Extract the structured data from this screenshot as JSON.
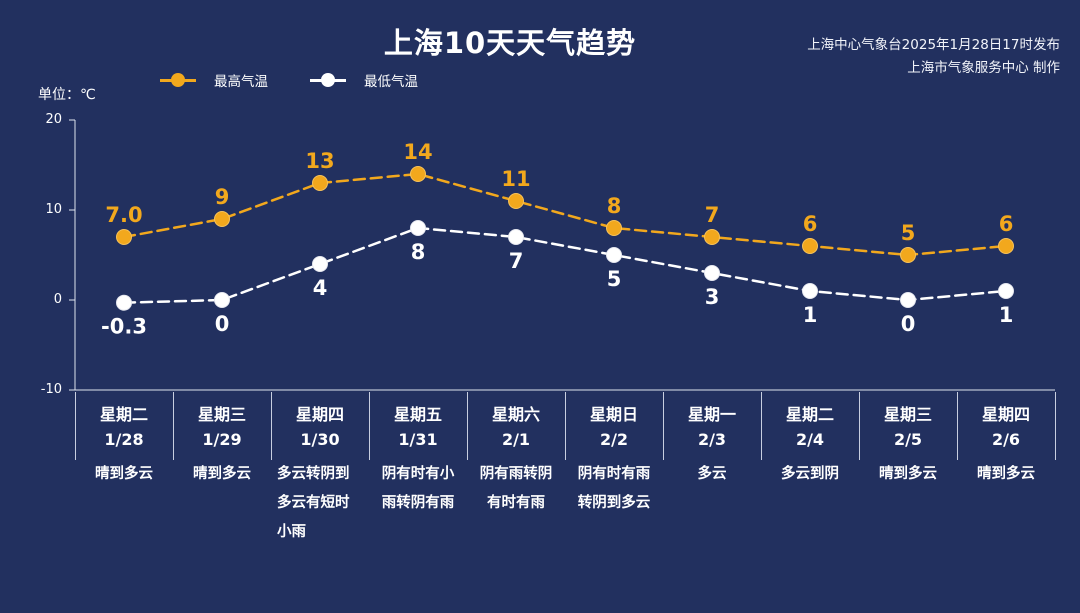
{
  "title": "上海10天天气趋势",
  "source_line1": "上海中心气象台2025年1月28日17时发布",
  "source_line2": "上海市气象服务中心 制作",
  "unit_label": "单位：℃",
  "colors": {
    "background": "#22305f",
    "high": "#f2a81d",
    "low": "#ffffff"
  },
  "chart_data": {
    "type": "line",
    "ylim": [
      -10,
      20
    ],
    "yticks": [
      "20",
      "10",
      "0",
      "-10"
    ],
    "grid": false,
    "legend_position": "top-left",
    "categories": [
      "星期二",
      "星期三",
      "星期四",
      "星期五",
      "星期六",
      "星期日",
      "星期一",
      "星期二",
      "星期三",
      "星期四"
    ],
    "dates": [
      "1/28",
      "1/29",
      "1/30",
      "1/31",
      "2/1",
      "2/2",
      "2/3",
      "2/4",
      "2/5",
      "2/6"
    ],
    "conditions": [
      [
        "晴到多云"
      ],
      [
        "晴到多云"
      ],
      [
        "多云转阴到",
        "多云有短时",
        "小雨"
      ],
      [
        "阴有时有小",
        "雨转阴有雨"
      ],
      [
        "阴有雨转阴",
        "有时有雨"
      ],
      [
        "阴有时有雨",
        "转阴到多云"
      ],
      [
        "多云"
      ],
      [
        "多云到阴"
      ],
      [
        "晴到多云"
      ],
      [
        "晴到多云"
      ]
    ],
    "series": [
      {
        "name": "最高气温",
        "values": [
          7.0,
          9,
          13,
          14,
          11,
          8,
          7,
          6,
          5,
          6
        ],
        "labels": [
          "7.0",
          "9",
          "13",
          "14",
          "11",
          "8",
          "7",
          "6",
          "5",
          "6"
        ]
      },
      {
        "name": "最低气温",
        "values": [
          -0.3,
          0,
          4,
          8,
          7,
          5,
          3,
          1,
          0,
          1
        ],
        "labels": [
          "-0.3",
          "0",
          "4",
          "8",
          "7",
          "5",
          "3",
          "1",
          "0",
          "1"
        ]
      }
    ]
  }
}
